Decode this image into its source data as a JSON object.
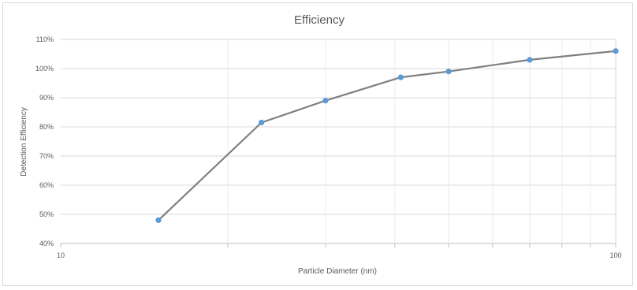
{
  "chart_data": {
    "type": "line",
    "title": "Efficiency",
    "xlabel": "Particle Diameter (nm)",
    "ylabel": "Detection Efficiency",
    "x_scale": "log",
    "xlim": [
      10,
      100
    ],
    "x_ticks": [
      "10",
      "100"
    ],
    "ylim": [
      0.4,
      1.1
    ],
    "y_ticks": [
      "40%",
      "50%",
      "60%",
      "70%",
      "80%",
      "90%",
      "100%",
      "110%"
    ],
    "grid": true,
    "legend": "none",
    "line_color": "#7f7f7f",
    "marker_color": "#5b9bd5",
    "series": [
      {
        "x": [
          15,
          23,
          30,
          41,
          50,
          70,
          100
        ],
        "y": [
          0.48,
          0.815,
          0.89,
          0.97,
          0.99,
          1.03,
          1.06
        ]
      }
    ]
  }
}
